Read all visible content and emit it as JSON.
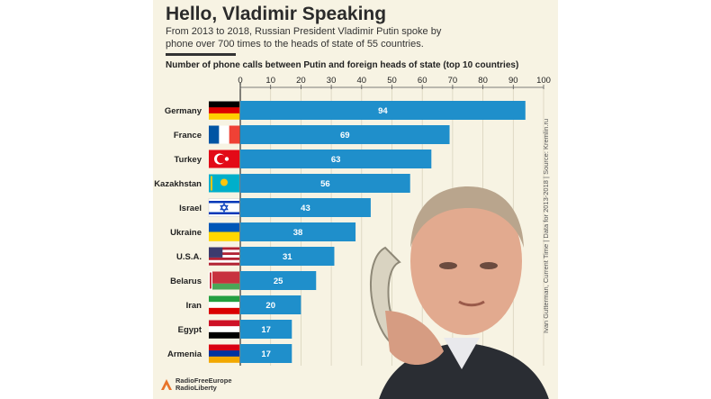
{
  "title": "Hello, Vladimir Speaking",
  "subtitle": "From 2013 to 2018, Russian President Vladimir Putin spoke by phone over 700 times to the heads of state of 55 countries.",
  "source": "Ivan Gutterman, Current Time | Data for 2013-2018 | Source: Kremlin.ru",
  "logo": {
    "line1": "RadioFreeEurope",
    "line2": "RadioLiberty",
    "icon": "rferl-logo-icon"
  },
  "colors": {
    "bar": "#1f8fcb",
    "background": "#f7f3e3",
    "bar_label": "#ffffff"
  },
  "chart_data": {
    "type": "bar",
    "orientation": "horizontal",
    "title": "Number of phone calls between Putin and foreign heads of state (top 10 countries)",
    "categories": [
      "Germany",
      "France",
      "Turkey",
      "Kazakhstan",
      "Israel",
      "Ukraine",
      "U.S.A.",
      "Belarus",
      "Iran",
      "Egypt",
      "Armenia"
    ],
    "values": [
      94,
      69,
      63,
      56,
      43,
      38,
      31,
      25,
      20,
      17,
      17
    ],
    "xlim": [
      0,
      100
    ],
    "xticks": [
      0,
      10,
      20,
      30,
      40,
      50,
      60,
      70,
      80,
      90,
      100
    ],
    "axis_position": "top",
    "grid": true,
    "data_labels": true,
    "flag_icons": [
      "germany-flag-icon",
      "france-flag-icon",
      "turkey-flag-icon",
      "kazakhstan-flag-icon",
      "israel-flag-icon",
      "ukraine-flag-icon",
      "usa-flag-icon",
      "belarus-flag-icon",
      "iran-flag-icon",
      "egypt-flag-icon",
      "armenia-flag-icon"
    ]
  }
}
